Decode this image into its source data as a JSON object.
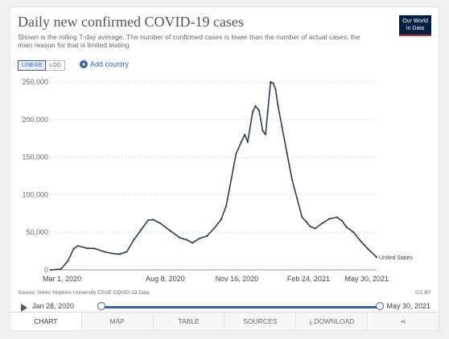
{
  "header": {
    "title": "Daily new confirmed COVID-19 cases",
    "subtitle": "Shown is the rolling 7-day average. The number of confirmed cases is lower than the number of actual cases; the main reason for that is limited testing.",
    "logo_line1": "Our World",
    "logo_line2": "in Data"
  },
  "controls": {
    "linear_label": "LINEAR",
    "log_label": "LOG",
    "add_country_label": "Add country"
  },
  "colors": {
    "line": "#2d3e50",
    "accent": "#3360a9",
    "logo_bg": "#002147"
  },
  "chart_data": {
    "type": "line",
    "title": "Daily new confirmed COVID-19 cases",
    "xlim": [
      "2020-03-01",
      "2021-05-30"
    ],
    "ylim": [
      0,
      250000
    ],
    "y_ticks": [
      0,
      50000,
      100000,
      150000,
      200000,
      250000
    ],
    "y_tick_labels": [
      "0",
      "50,000",
      "100,000",
      "150,000",
      "200,000",
      "250,000"
    ],
    "x_ticks": [
      "2020-03-01",
      "2020-08-08",
      "2020-11-16",
      "2021-02-24",
      "2021-05-30"
    ],
    "x_tick_labels": [
      "Mar 1, 2020",
      "Aug 8, 2020",
      "Nov 16, 2020",
      "Feb 24, 2021",
      "May 30, 2021"
    ],
    "grid": true,
    "series": [
      {
        "name": "United States",
        "x": [
          "2020-03-01",
          "2020-03-15",
          "2020-03-25",
          "2020-04-02",
          "2020-04-08",
          "2020-04-20",
          "2020-05-01",
          "2020-05-15",
          "2020-05-25",
          "2020-06-05",
          "2020-06-15",
          "2020-06-25",
          "2020-07-05",
          "2020-07-15",
          "2020-07-22",
          "2020-08-01",
          "2020-08-15",
          "2020-08-28",
          "2020-09-07",
          "2020-09-15",
          "2020-09-25",
          "2020-10-05",
          "2020-10-15",
          "2020-10-25",
          "2020-11-01",
          "2020-11-08",
          "2020-11-15",
          "2020-11-22",
          "2020-11-27",
          "2020-12-01",
          "2020-12-08",
          "2020-12-12",
          "2020-12-17",
          "2020-12-22",
          "2020-12-26",
          "2020-12-29",
          "2021-01-02",
          "2021-01-06",
          "2021-01-09",
          "2021-01-12",
          "2021-01-18",
          "2021-01-25",
          "2021-02-01",
          "2021-02-08",
          "2021-02-15",
          "2021-02-20",
          "2021-02-26",
          "2021-03-05",
          "2021-03-15",
          "2021-03-25",
          "2021-04-05",
          "2021-04-12",
          "2021-04-18",
          "2021-04-28",
          "2021-05-08",
          "2021-05-18",
          "2021-05-30"
        ],
        "y": [
          0,
          1000,
          12000,
          28000,
          32000,
          29000,
          28500,
          24000,
          22000,
          21000,
          24000,
          40000,
          53000,
          66000,
          67000,
          62000,
          52000,
          43000,
          40000,
          36000,
          42000,
          45000,
          55000,
          67000,
          85000,
          120000,
          155000,
          170000,
          180000,
          170000,
          210000,
          218000,
          212000,
          185000,
          180000,
          210000,
          250000,
          248000,
          240000,
          220000,
          190000,
          155000,
          120000,
          95000,
          70000,
          65000,
          58000,
          55000,
          62000,
          68000,
          70000,
          65000,
          57000,
          50000,
          38000,
          28000,
          17000
        ]
      }
    ],
    "series_label": "United States"
  },
  "footer": {
    "source": "Source: Johns Hopkins University CSSE COVID-19 Data",
    "license": "CC BY"
  },
  "timeline": {
    "start_label": "Jan 28, 2020",
    "end_label": "May 30, 2021",
    "start_fraction": 0.0,
    "end_fraction": 1.0
  },
  "tabs": [
    {
      "label": "CHART"
    },
    {
      "label": "MAP"
    },
    {
      "label": "TABLE"
    },
    {
      "label": "SOURCES"
    },
    {
      "label": "⤓ DOWNLOAD"
    },
    {
      "label": "⋖"
    }
  ]
}
